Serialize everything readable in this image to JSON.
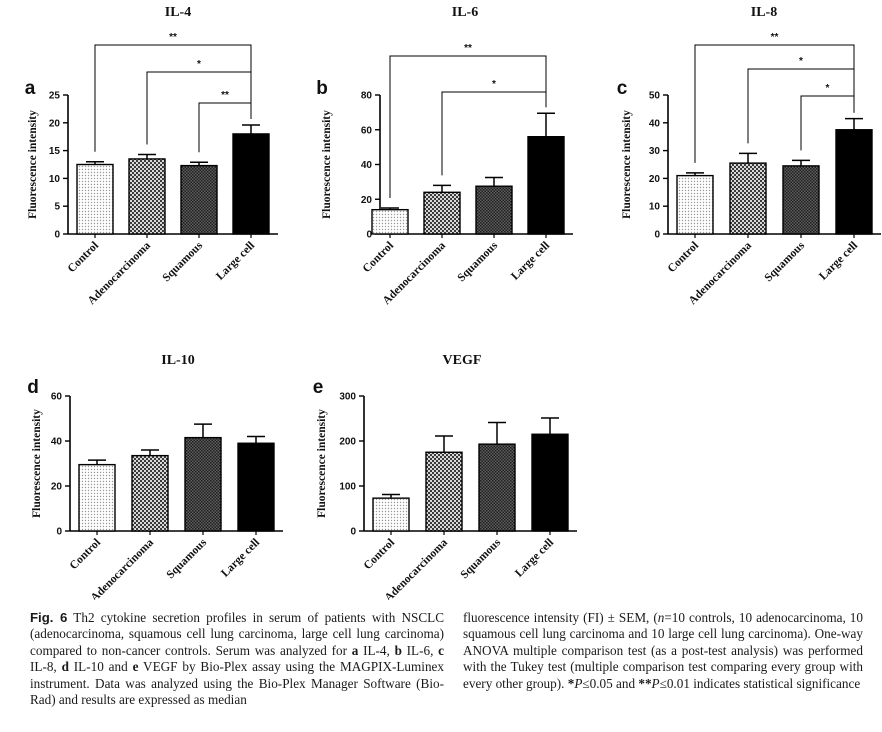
{
  "chart_data": [
    {
      "panel": "a",
      "title": "IL-4",
      "type": "bar",
      "categories": [
        "Control",
        "Adenocarcinoma",
        "Squamous",
        "Large cell"
      ],
      "values": [
        12.5,
        13.5,
        12.3,
        18.0
      ],
      "errors": [
        0.5,
        0.8,
        0.6,
        1.6
      ],
      "ylabel": "Fluorescence intensity",
      "ylim": [
        0,
        25
      ],
      "yticks": [
        0,
        5,
        10,
        15,
        20,
        25
      ],
      "significance": [
        {
          "from": 0,
          "to": 3,
          "label": "**"
        },
        {
          "from": 1,
          "to": 3,
          "label": "*"
        },
        {
          "from": 2,
          "to": 3,
          "label": "**"
        }
      ]
    },
    {
      "panel": "b",
      "title": "IL-6",
      "type": "bar",
      "categories": [
        "Control",
        "Adenocarcinoma",
        "Squamous",
        "Large cell"
      ],
      "values": [
        14,
        24,
        27.5,
        56
      ],
      "errors": [
        1,
        4,
        5,
        13.5
      ],
      "ylabel": "Fluorescence intensity",
      "ylim": [
        0,
        80
      ],
      "yticks": [
        0,
        20,
        40,
        60,
        80
      ],
      "significance": [
        {
          "from": 0,
          "to": 3,
          "label": "**"
        },
        {
          "from": 1,
          "to": 3,
          "label": "*"
        }
      ]
    },
    {
      "panel": "c",
      "title": "IL-8",
      "type": "bar",
      "categories": [
        "Control",
        "Adenocarcinoma",
        "Squamous",
        "Large cell"
      ],
      "values": [
        21,
        25.5,
        24.5,
        37.5
      ],
      "errors": [
        1,
        3.5,
        2,
        4
      ],
      "ylabel": "Fluorescence intensity",
      "ylim": [
        0,
        50
      ],
      "yticks": [
        0,
        10,
        20,
        30,
        40,
        50
      ],
      "significance": [
        {
          "from": 0,
          "to": 3,
          "label": "**"
        },
        {
          "from": 1,
          "to": 3,
          "label": "*"
        },
        {
          "from": 2,
          "to": 3,
          "label": "*"
        }
      ]
    },
    {
      "panel": "d",
      "title": "IL-10",
      "type": "bar",
      "categories": [
        "Control",
        "Adenocarcinoma",
        "Squamous",
        "Large cell"
      ],
      "values": [
        29.5,
        33.5,
        41.5,
        39
      ],
      "errors": [
        2,
        2.5,
        6,
        3
      ],
      "ylabel": "Fluorescence intensity",
      "ylim": [
        0,
        60
      ],
      "yticks": [
        0,
        20,
        40,
        60
      ],
      "significance": []
    },
    {
      "panel": "e",
      "title": "VEGF",
      "type": "bar",
      "categories": [
        "Control",
        "Adenocarcinoma",
        "Squamous",
        "Large cell"
      ],
      "values": [
        73,
        175,
        193,
        215
      ],
      "errors": [
        8,
        36,
        48,
        36
      ],
      "ylabel": "Fluorescence intensity",
      "ylim": [
        0,
        300
      ],
      "yticks": [
        0,
        100,
        200,
        300
      ],
      "significance": []
    }
  ],
  "caption": {
    "fig_label": "Fig. 6",
    "left_parts": [
      {
        "t": "  Th2 cytokine secretion profiles in serum of patients with NSCLC (adenocarcinoma, squamous cell lung carcinoma, large cell lung carcinoma) compared to non-cancer controls. Serum was analyzed for "
      },
      {
        "t": "a",
        "b": true
      },
      {
        "t": " IL-4, "
      },
      {
        "t": "b",
        "b": true
      },
      {
        "t": " IL-6, "
      },
      {
        "t": "c",
        "b": true
      },
      {
        "t": " IL-8, "
      },
      {
        "t": "d",
        "b": true
      },
      {
        "t": " IL-10 and "
      },
      {
        "t": "e",
        "b": true
      },
      {
        "t": " VEGF by Bio-Plex assay using the MAGPIX-Luminex instrument. Data was analyzed using the Bio-Plex Manager Software (Bio-Rad) and results are expressed as median"
      }
    ],
    "right_parts": [
      {
        "t": "fluorescence intensity (FI) ± SEM, ("
      },
      {
        "t": "n",
        "i": true
      },
      {
        "t": "=10 controls, 10 adenocarcinoma, 10 squamous cell lung carcinoma and 10 large cell lung carcinoma). One-way ANOVA multiple comparison test (as a post-test analysis) was performed with the Tukey test (multiple comparison test comparing every group with every other group). "
      },
      {
        "t": "*",
        "b": true
      },
      {
        "t": "P",
        "i": true
      },
      {
        "t": "≤0.05 and "
      },
      {
        "t": "**",
        "b": true
      },
      {
        "t": "P",
        "i": true
      },
      {
        "t": "≤0.01 indicates statistical significance"
      }
    ]
  }
}
